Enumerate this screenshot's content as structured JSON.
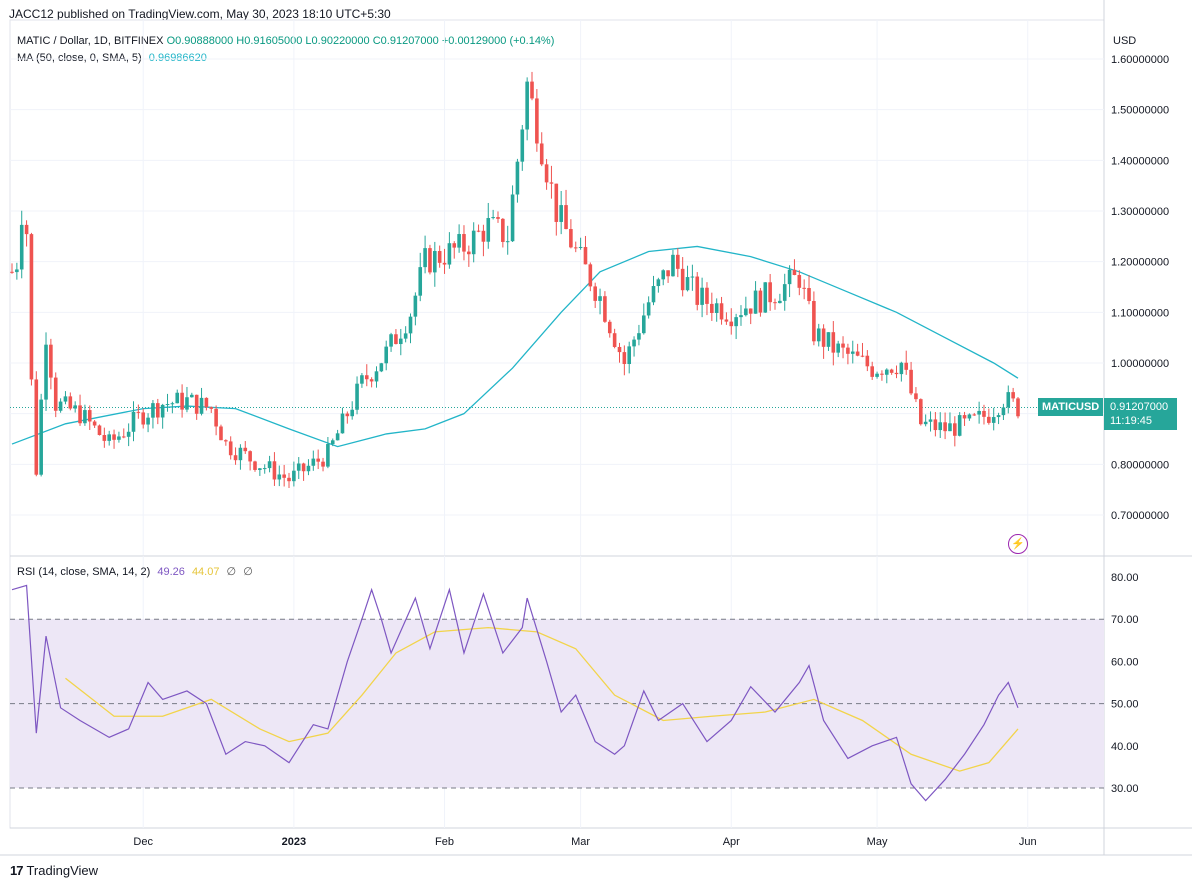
{
  "header": {
    "published": "JACC12 published on TradingView.com, May 30, 2023 18:10 UTC+5:30",
    "symbol_line": "MATIC / Dollar, 1D, BITFINEX",
    "open": "O0.90888000",
    "high": "H0.91605000",
    "low": "L0.90220000",
    "close": "C0.91207000",
    "change": "+0.00129000 (+0.14%)",
    "ma_label": "MA (50, close, 0, SMA, 5)",
    "ma_value": "0.96986620",
    "currency": "USD"
  },
  "price_tag": {
    "symbol": "MATICUSD",
    "price": "0.91207000",
    "countdown": "11:19:45"
  },
  "rsi_legend": {
    "label": "RSI (14, close, SMA, 14, 2)",
    "rsi_value": "49.26",
    "rsi_ma_value": "44.07",
    "z1": "∅",
    "z2": "∅"
  },
  "footer": {
    "brand": "TradingView",
    "logo": "17"
  },
  "colors": {
    "up": "#26a69a",
    "down": "#ef5350",
    "ma": "#22b5c8",
    "rsi": "#7e57c2",
    "rsi_ma": "#f2d44a",
    "rsi_band": "#ede7f6"
  },
  "chart_data": [
    {
      "type": "candlestick",
      "title": "MATIC / Dollar, 1D, BITFINEX",
      "y_axis_labels": [
        "1.60000000",
        "1.50000000",
        "1.40000000",
        "1.30000000",
        "1.20000000",
        "1.10000000",
        "1.00000000",
        "0.80000000",
        "0.70000000"
      ],
      "y_axis_values": [
        1.6,
        1.5,
        1.4,
        1.3,
        1.2,
        1.1,
        1.0,
        0.8,
        0.7
      ],
      "ylim": [
        0.66,
        1.7
      ],
      "x_axis_labels": [
        "Dec",
        "2023",
        "Feb",
        "Mar",
        "Apr",
        "May",
        "Jun"
      ],
      "x_axis_values": [
        "2022-12-01",
        "2023-01-01",
        "2023-02-01",
        "2023-03-01",
        "2023-04-01",
        "2023-05-01",
        "2023-06-01"
      ],
      "date_range": [
        "2022-11-04",
        "2023-05-30"
      ],
      "series": [
        {
          "name": "MA (50, close, 0, SMA, 5)",
          "type": "line",
          "points": [
            [
              "2022-11-04",
              0.84
            ],
            [
              "2022-11-15",
              0.88
            ],
            [
              "2022-12-01",
              0.91
            ],
            [
              "2022-12-10",
              0.915
            ],
            [
              "2022-12-20",
              0.91
            ],
            [
              "2022-12-31",
              0.87
            ],
            [
              "2023-01-10",
              0.835
            ],
            [
              "2023-01-20",
              0.86
            ],
            [
              "2023-01-28",
              0.87
            ],
            [
              "2023-02-05",
              0.9
            ],
            [
              "2023-02-15",
              0.99
            ],
            [
              "2023-02-25",
              1.1
            ],
            [
              "2023-03-05",
              1.18
            ],
            [
              "2023-03-15",
              1.22
            ],
            [
              "2023-03-25",
              1.23
            ],
            [
              "2023-04-05",
              1.21
            ],
            [
              "2023-04-15",
              1.18
            ],
            [
              "2023-04-25",
              1.14
            ],
            [
              "2023-05-05",
              1.1
            ],
            [
              "2023-05-15",
              1.05
            ],
            [
              "2023-05-25",
              1.0
            ],
            [
              "2023-05-30",
              0.97
            ]
          ]
        },
        {
          "name": "MATICUSD",
          "type": "candlestick",
          "closes_approx": [
            [
              "2022-11-04",
              1.18
            ],
            [
              "2022-11-05",
              1.2
            ],
            [
              "2022-11-06",
              1.3
            ],
            [
              "2022-11-07",
              1.26
            ],
            [
              "2022-11-08",
              0.96
            ],
            [
              "2022-11-09",
              0.79
            ],
            [
              "2022-11-11",
              1.06
            ],
            [
              "2022-11-13",
              0.92
            ],
            [
              "2022-11-18",
              0.9
            ],
            [
              "2022-11-24",
              0.84
            ],
            [
              "2022-12-01",
              0.9
            ],
            [
              "2022-12-05",
              0.92
            ],
            [
              "2022-12-10",
              0.925
            ],
            [
              "2022-12-15",
              0.91
            ],
            [
              "2022-12-18",
              0.84
            ],
            [
              "2022-12-25",
              0.8
            ],
            [
              "2022-12-31",
              0.77
            ],
            [
              "2023-01-08",
              0.82
            ],
            [
              "2023-01-15",
              0.96
            ],
            [
              "2023-01-20",
              1.02
            ],
            [
              "2023-01-25",
              1.1
            ],
            [
              "2023-01-28",
              1.2
            ],
            [
              "2023-02-05",
              1.23
            ],
            [
              "2023-02-10",
              1.27
            ],
            [
              "2023-02-14",
              1.25
            ],
            [
              "2023-02-18",
              1.55
            ],
            [
              "2023-02-20",
              1.47
            ],
            [
              "2023-02-24",
              1.3
            ],
            [
              "2023-02-28",
              1.22
            ],
            [
              "2023-03-05",
              1.13
            ],
            [
              "2023-03-10",
              1.0
            ],
            [
              "2023-03-15",
              1.12
            ],
            [
              "2023-03-20",
              1.2
            ],
            [
              "2023-03-25",
              1.13
            ],
            [
              "2023-04-01",
              1.1
            ],
            [
              "2023-04-10",
              1.14
            ],
            [
              "2023-04-15",
              1.17
            ],
            [
              "2023-04-18",
              1.06
            ],
            [
              "2023-04-22",
              1.03
            ],
            [
              "2023-04-30",
              0.99
            ],
            [
              "2023-05-06",
              1.0
            ],
            [
              "2023-05-10",
              0.88
            ],
            [
              "2023-05-15",
              0.87
            ],
            [
              "2023-05-20",
              0.88
            ],
            [
              "2023-05-24",
              0.9
            ],
            [
              "2023-05-27",
              0.93
            ],
            [
              "2023-05-30",
              0.912
            ]
          ]
        }
      ]
    },
    {
      "type": "line",
      "title": "RSI (14, close, SMA, 14, 2)",
      "y_axis_labels": [
        "80.00",
        "70.00",
        "60.00",
        "50.00",
        "40.00",
        "30.00"
      ],
      "y_axis_values": [
        80,
        70,
        60,
        50,
        40,
        30
      ],
      "ylim": [
        22,
        82
      ],
      "band": [
        30,
        70
      ],
      "midline": 50,
      "series": [
        {
          "name": "RSI",
          "points": [
            [
              "2022-11-04",
              77
            ],
            [
              "2022-11-07",
              78
            ],
            [
              "2022-11-09",
              43
            ],
            [
              "2022-11-11",
              66
            ],
            [
              "2022-11-14",
              49
            ],
            [
              "2022-11-18",
              46
            ],
            [
              "2022-11-24",
              42
            ],
            [
              "2022-11-28",
              44
            ],
            [
              "2022-12-02",
              55
            ],
            [
              "2022-12-05",
              51
            ],
            [
              "2022-12-10",
              53
            ],
            [
              "2022-12-14",
              50
            ],
            [
              "2022-12-18",
              38
            ],
            [
              "2022-12-22",
              41
            ],
            [
              "2022-12-26",
              40
            ],
            [
              "2022-12-31",
              36
            ],
            [
              "2023-01-05",
              45
            ],
            [
              "2023-01-08",
              44
            ],
            [
              "2023-01-12",
              60
            ],
            [
              "2023-01-15",
              70
            ],
            [
              "2023-01-17",
              77
            ],
            [
              "2023-01-19",
              70
            ],
            [
              "2023-01-21",
              62
            ],
            [
              "2023-01-26",
              75
            ],
            [
              "2023-01-29",
              63
            ],
            [
              "2023-02-02",
              77
            ],
            [
              "2023-02-05",
              62
            ],
            [
              "2023-02-09",
              76
            ],
            [
              "2023-02-13",
              62
            ],
            [
              "2023-02-17",
              68
            ],
            [
              "2023-02-18",
              75
            ],
            [
              "2023-02-22",
              60
            ],
            [
              "2023-02-25",
              48
            ],
            [
              "2023-02-28",
              52
            ],
            [
              "2023-03-04",
              41
            ],
            [
              "2023-03-08",
              38
            ],
            [
              "2023-03-10",
              40
            ],
            [
              "2023-03-14",
              53
            ],
            [
              "2023-03-17",
              46
            ],
            [
              "2023-03-22",
              50
            ],
            [
              "2023-03-27",
              41
            ],
            [
              "2023-04-01",
              46
            ],
            [
              "2023-04-05",
              54
            ],
            [
              "2023-04-10",
              48
            ],
            [
              "2023-04-15",
              55
            ],
            [
              "2023-04-17",
              59
            ],
            [
              "2023-04-20",
              46
            ],
            [
              "2023-04-25",
              37
            ],
            [
              "2023-04-30",
              40
            ],
            [
              "2023-05-05",
              42
            ],
            [
              "2023-05-08",
              31
            ],
            [
              "2023-05-11",
              27
            ],
            [
              "2023-05-15",
              32
            ],
            [
              "2023-05-19",
              38
            ],
            [
              "2023-05-23",
              45
            ],
            [
              "2023-05-26",
              52
            ],
            [
              "2023-05-28",
              55
            ],
            [
              "2023-05-30",
              49
            ]
          ]
        },
        {
          "name": "RSI-based MA",
          "points": [
            [
              "2022-11-15",
              56
            ],
            [
              "2022-11-25",
              47
            ],
            [
              "2022-12-05",
              47
            ],
            [
              "2022-12-15",
              51
            ],
            [
              "2022-12-25",
              44
            ],
            [
              "2022-12-31",
              41
            ],
            [
              "2023-01-08",
              43
            ],
            [
              "2023-01-15",
              52
            ],
            [
              "2023-01-22",
              62
            ],
            [
              "2023-01-30",
              67
            ],
            [
              "2023-02-10",
              68
            ],
            [
              "2023-02-20",
              67
            ],
            [
              "2023-02-28",
              63
            ],
            [
              "2023-03-08",
              52
            ],
            [
              "2023-03-18",
              46
            ],
            [
              "2023-03-28",
              47
            ],
            [
              "2023-04-08",
              48
            ],
            [
              "2023-04-18",
              51
            ],
            [
              "2023-04-28",
              46
            ],
            [
              "2023-05-08",
              38
            ],
            [
              "2023-05-18",
              34
            ],
            [
              "2023-05-24",
              36
            ],
            [
              "2023-05-30",
              44
            ]
          ]
        }
      ]
    }
  ]
}
